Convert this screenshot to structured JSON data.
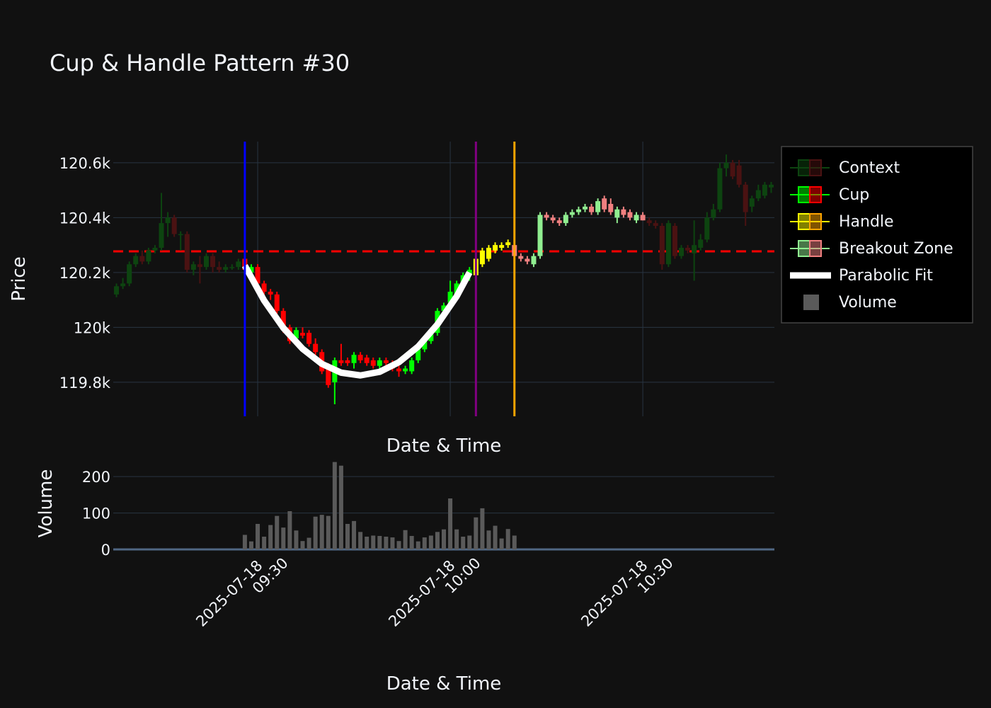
{
  "chart_data": [
    {
      "type": "candlestick",
      "title": "Cup & Handle Pattern #30",
      "xlabel": "Date & Time",
      "ylabel": "Price",
      "xlim": [
        "2025-07-18 09:07:30",
        "2025-07-18 10:50:30"
      ],
      "ylim": [
        119676,
        120677
      ],
      "yticks": [
        {
          "value": 119800,
          "label": "119.8k"
        },
        {
          "value": 120000,
          "label": "120k"
        },
        {
          "value": 120200,
          "label": "120.2k"
        },
        {
          "value": 120400,
          "label": "120.4k"
        },
        {
          "value": 120600,
          "label": "120.6k"
        }
      ],
      "grid": true,
      "legend": "right",
      "series": [
        {
          "name": "Context",
          "increasing_color": "#0d4410",
          "decreasing_color": "#4a1212",
          "x": [
            "2025-07-18 09:08",
            "2025-07-18 09:09",
            "2025-07-18 09:10",
            "2025-07-18 09:11",
            "2025-07-18 09:12",
            "2025-07-18 09:13",
            "2025-07-18 09:14",
            "2025-07-18 09:15",
            "2025-07-18 09:16",
            "2025-07-18 09:17",
            "2025-07-18 09:18",
            "2025-07-18 09:19",
            "2025-07-18 09:20",
            "2025-07-18 09:21",
            "2025-07-18 09:22",
            "2025-07-18 09:23",
            "2025-07-18 09:24",
            "2025-07-18 09:25",
            "2025-07-18 09:26",
            "2025-07-18 09:27",
            "2025-07-18 10:31",
            "2025-07-18 10:32",
            "2025-07-18 10:33",
            "2025-07-18 10:34",
            "2025-07-18 10:35",
            "2025-07-18 10:36",
            "2025-07-18 10:37",
            "2025-07-18 10:38",
            "2025-07-18 10:39",
            "2025-07-18 10:40",
            "2025-07-18 10:41",
            "2025-07-18 10:42",
            "2025-07-18 10:43",
            "2025-07-18 10:44",
            "2025-07-18 10:45",
            "2025-07-18 10:46",
            "2025-07-18 10:47",
            "2025-07-18 10:48",
            "2025-07-18 10:49",
            "2025-07-18 10:50"
          ],
          "open": [
            120120,
            120150,
            120160,
            120230,
            120260,
            120240,
            120280,
            120290,
            120380,
            120400,
            120340,
            120340,
            120210,
            120230,
            120220,
            120260,
            120220,
            120210,
            120220,
            120220,
            120390,
            120380,
            120370,
            120230,
            120370,
            120260,
            120290,
            120270,
            120290,
            120320,
            120400,
            120430,
            120580,
            120600,
            120590,
            120520,
            120440,
            120470,
            120480,
            120510
          ],
          "high": [
            120160,
            120180,
            120240,
            120270,
            120280,
            120290,
            120300,
            120490,
            120420,
            120410,
            120350,
            120350,
            120240,
            120260,
            120270,
            120270,
            120240,
            120230,
            120230,
            120250,
            120400,
            120390,
            120380,
            120390,
            120380,
            120300,
            120300,
            120390,
            120340,
            120420,
            120450,
            120600,
            120630,
            120610,
            120610,
            120530,
            120480,
            120520,
            120530,
            120530
          ],
          "low": [
            120110,
            120140,
            120150,
            120220,
            120230,
            120230,
            120270,
            120280,
            120330,
            120330,
            120280,
            120200,
            120190,
            120160,
            120210,
            120200,
            120200,
            120200,
            120210,
            120210,
            120370,
            120360,
            120210,
            120220,
            120250,
            120250,
            120270,
            120170,
            120280,
            120310,
            120390,
            120420,
            120550,
            120540,
            120510,
            120370,
            120420,
            120460,
            120470,
            120490
          ],
          "close": [
            120150,
            120160,
            120230,
            120260,
            120240,
            120280,
            120290,
            120380,
            120400,
            120340,
            120340,
            120210,
            120230,
            120220,
            120260,
            120220,
            120210,
            120220,
            120220,
            120240,
            120380,
            120370,
            120230,
            120380,
            120260,
            120290,
            120280,
            120300,
            120320,
            120400,
            120430,
            120580,
            120600,
            120550,
            120520,
            120420,
            120470,
            120500,
            120520,
            120520
          ]
        },
        {
          "name": "Cup",
          "increasing_color": "#00ff00",
          "decreasing_color": "#ff0000",
          "x": [
            "2025-07-18 09:28",
            "2025-07-18 09:29",
            "2025-07-18 09:30",
            "2025-07-18 09:31",
            "2025-07-18 09:32",
            "2025-07-18 09:33",
            "2025-07-18 09:34",
            "2025-07-18 09:35",
            "2025-07-18 09:36",
            "2025-07-18 09:37",
            "2025-07-18 09:38",
            "2025-07-18 09:39",
            "2025-07-18 09:40",
            "2025-07-18 09:41",
            "2025-07-18 09:42",
            "2025-07-18 09:43",
            "2025-07-18 09:44",
            "2025-07-18 09:45",
            "2025-07-18 09:46",
            "2025-07-18 09:47",
            "2025-07-18 09:48",
            "2025-07-18 09:49",
            "2025-07-18 09:50",
            "2025-07-18 09:51",
            "2025-07-18 09:52",
            "2025-07-18 09:53",
            "2025-07-18 09:54",
            "2025-07-18 09:55",
            "2025-07-18 09:56",
            "2025-07-18 09:57",
            "2025-07-18 09:58",
            "2025-07-18 09:59",
            "2025-07-18 10:00",
            "2025-07-18 10:01",
            "2025-07-18 10:02",
            "2025-07-18 10:03"
          ],
          "open": [
            120250,
            120200,
            120220,
            120160,
            120130,
            120120,
            120060,
            120000,
            119960,
            119980,
            119980,
            119940,
            119910,
            119860,
            119800,
            119880,
            119880,
            119870,
            119900,
            119890,
            119880,
            119860,
            119880,
            119870,
            119850,
            119840,
            119840,
            119880,
            119920,
            119950,
            119980,
            120060,
            120090,
            120120,
            120160,
            120190
          ],
          "high": [
            120260,
            120230,
            120230,
            120170,
            120140,
            120130,
            120070,
            120010,
            120000,
            120000,
            119990,
            119960,
            119920,
            119870,
            119890,
            119940,
            119890,
            119910,
            119910,
            119900,
            119890,
            119890,
            119890,
            119880,
            119860,
            119860,
            119890,
            119930,
            119960,
            119990,
            120070,
            120090,
            120170,
            120170,
            120200,
            120220
          ],
          "low": [
            120200,
            120190,
            120150,
            120120,
            120100,
            120050,
            119980,
            119940,
            119950,
            119960,
            119930,
            119900,
            119830,
            119780,
            119720,
            119860,
            119860,
            119850,
            119870,
            119860,
            119850,
            119850,
            119860,
            119840,
            119820,
            119830,
            119830,
            119870,
            119910,
            119940,
            119970,
            120050,
            120080,
            120100,
            120150,
            120170
          ],
          "close": [
            120210,
            120220,
            120160,
            120130,
            120120,
            120060,
            119990,
            119950,
            119990,
            119970,
            119940,
            119910,
            119840,
            119790,
            119880,
            119870,
            119870,
            119900,
            119880,
            119870,
            119860,
            119880,
            119870,
            119850,
            119840,
            119850,
            119880,
            119920,
            119950,
            119980,
            120060,
            120080,
            120130,
            120160,
            120190,
            120210
          ]
        },
        {
          "name": "Handle",
          "increasing_color": "#ffff00",
          "decreasing_color": "#ffa500",
          "x": [
            "2025-07-18 10:04",
            "2025-07-18 10:05",
            "2025-07-18 10:06",
            "2025-07-18 10:07",
            "2025-07-18 10:08",
            "2025-07-18 10:09"
          ],
          "open": [
            120190,
            120230,
            120250,
            120280,
            120290,
            120300
          ],
          "high": [
            120300,
            120290,
            120300,
            120310,
            120310,
            120320
          ],
          "low": [
            120180,
            120220,
            120240,
            120270,
            120280,
            120290
          ],
          "close": [
            120250,
            120280,
            120290,
            120300,
            120300,
            120310
          ]
        },
        {
          "name": "Breakout Zone",
          "increasing_color": "#90ee90",
          "decreasing_color": "#f08080",
          "x": [
            "2025-07-18 10:10",
            "2025-07-18 10:11",
            "2025-07-18 10:12",
            "2025-07-18 10:13",
            "2025-07-18 10:14",
            "2025-07-18 10:15",
            "2025-07-18 10:16",
            "2025-07-18 10:17",
            "2025-07-18 10:18",
            "2025-07-18 10:19",
            "2025-07-18 10:20",
            "2025-07-18 10:21",
            "2025-07-18 10:22",
            "2025-07-18 10:23",
            "2025-07-18 10:24",
            "2025-07-18 10:25",
            "2025-07-18 10:26",
            "2025-07-18 10:27",
            "2025-07-18 10:28",
            "2025-07-18 10:29",
            "2025-07-18 10:30"
          ],
          "open": [
            120300,
            120260,
            120250,
            120230,
            120260,
            120410,
            120400,
            120390,
            120380,
            120410,
            120420,
            120430,
            120440,
            120420,
            120470,
            120450,
            120400,
            120430,
            120420,
            120390,
            120410
          ],
          "high": [
            120310,
            120270,
            120260,
            120270,
            120420,
            120420,
            120410,
            120400,
            120420,
            120430,
            120440,
            120450,
            120450,
            120470,
            120480,
            120470,
            120440,
            120440,
            120430,
            120420,
            120420
          ],
          "low": [
            120250,
            120240,
            120230,
            120220,
            120250,
            120390,
            120380,
            120370,
            120370,
            120400,
            120410,
            120420,
            120410,
            120410,
            120420,
            120410,
            120380,
            120400,
            120390,
            120380,
            120390
          ],
          "close": [
            120260,
            120250,
            120240,
            120260,
            120410,
            120400,
            120390,
            120380,
            120410,
            120420,
            120430,
            120440,
            120420,
            120460,
            120430,
            120420,
            120430,
            120410,
            120400,
            120410,
            120390
          ]
        },
        {
          "name": "Parabolic Fit",
          "type": "line",
          "color": "#ffffff",
          "x": [
            "2025-07-18 09:28",
            "2025-07-18 09:31",
            "2025-07-18 09:34",
            "2025-07-18 09:37",
            "2025-07-18 09:40",
            "2025-07-18 09:43",
            "2025-07-18 09:46",
            "2025-07-18 09:49",
            "2025-07-18 09:52",
            "2025-07-18 09:55",
            "2025-07-18 09:58",
            "2025-07-18 10:01",
            "2025-07-18 10:03"
          ],
          "values": [
            120225,
            120098,
            119998,
            119922,
            119867,
            119835,
            119825,
            119838,
            119873,
            119930,
            120011,
            120113,
            120200
          ]
        }
      ],
      "vlines": [
        {
          "x": "2025-07-18 09:28",
          "color": "#0000ff"
        },
        {
          "x": "2025-07-18 10:04",
          "color": "#800080"
        },
        {
          "x": "2025-07-18 10:10",
          "color": "#ffa500"
        }
      ],
      "hlines": [
        {
          "y": 120277,
          "color": "#ff0000",
          "dash": true
        }
      ]
    },
    {
      "type": "bar",
      "xlabel": "Date & Time",
      "ylabel": "Volume",
      "xlim": [
        "2025-07-18 09:07:30",
        "2025-07-18 10:50:30"
      ],
      "xticks": [
        "2025-07-18 09:30",
        "2025-07-18 10:00",
        "2025-07-18 10:30"
      ],
      "ylim": [
        0,
        245
      ],
      "yticks": [
        0,
        100,
        200
      ],
      "grid": true,
      "series": [
        {
          "name": "Volume",
          "color": "#5a5a5a",
          "x": [
            "2025-07-18 09:28",
            "2025-07-18 09:29",
            "2025-07-18 09:30",
            "2025-07-18 09:31",
            "2025-07-18 09:32",
            "2025-07-18 09:33",
            "2025-07-18 09:34",
            "2025-07-18 09:35",
            "2025-07-18 09:36",
            "2025-07-18 09:37",
            "2025-07-18 09:38",
            "2025-07-18 09:39",
            "2025-07-18 09:40",
            "2025-07-18 09:41",
            "2025-07-18 09:42",
            "2025-07-18 09:43",
            "2025-07-18 09:44",
            "2025-07-18 09:45",
            "2025-07-18 09:46",
            "2025-07-18 09:47",
            "2025-07-18 09:48",
            "2025-07-18 09:49",
            "2025-07-18 09:50",
            "2025-07-18 09:51",
            "2025-07-18 09:52",
            "2025-07-18 09:53",
            "2025-07-18 09:54",
            "2025-07-18 09:55",
            "2025-07-18 09:56",
            "2025-07-18 09:57",
            "2025-07-18 09:58",
            "2025-07-18 09:59",
            "2025-07-18 10:00",
            "2025-07-18 10:01",
            "2025-07-18 10:02",
            "2025-07-18 10:03",
            "2025-07-18 10:04",
            "2025-07-18 10:05",
            "2025-07-18 10:06",
            "2025-07-18 10:07",
            "2025-07-18 10:08",
            "2025-07-18 10:09",
            "2025-07-18 10:10"
          ],
          "values": [
            40,
            22,
            70,
            35,
            67,
            92,
            60,
            105,
            52,
            23,
            32,
            90,
            95,
            92,
            240,
            230,
            70,
            78,
            48,
            35,
            38,
            37,
            35,
            33,
            23,
            53,
            37,
            22,
            33,
            38,
            48,
            55,
            140,
            55,
            35,
            38,
            88,
            113,
            52,
            65,
            30,
            56,
            38
          ]
        }
      ]
    }
  ]
}
